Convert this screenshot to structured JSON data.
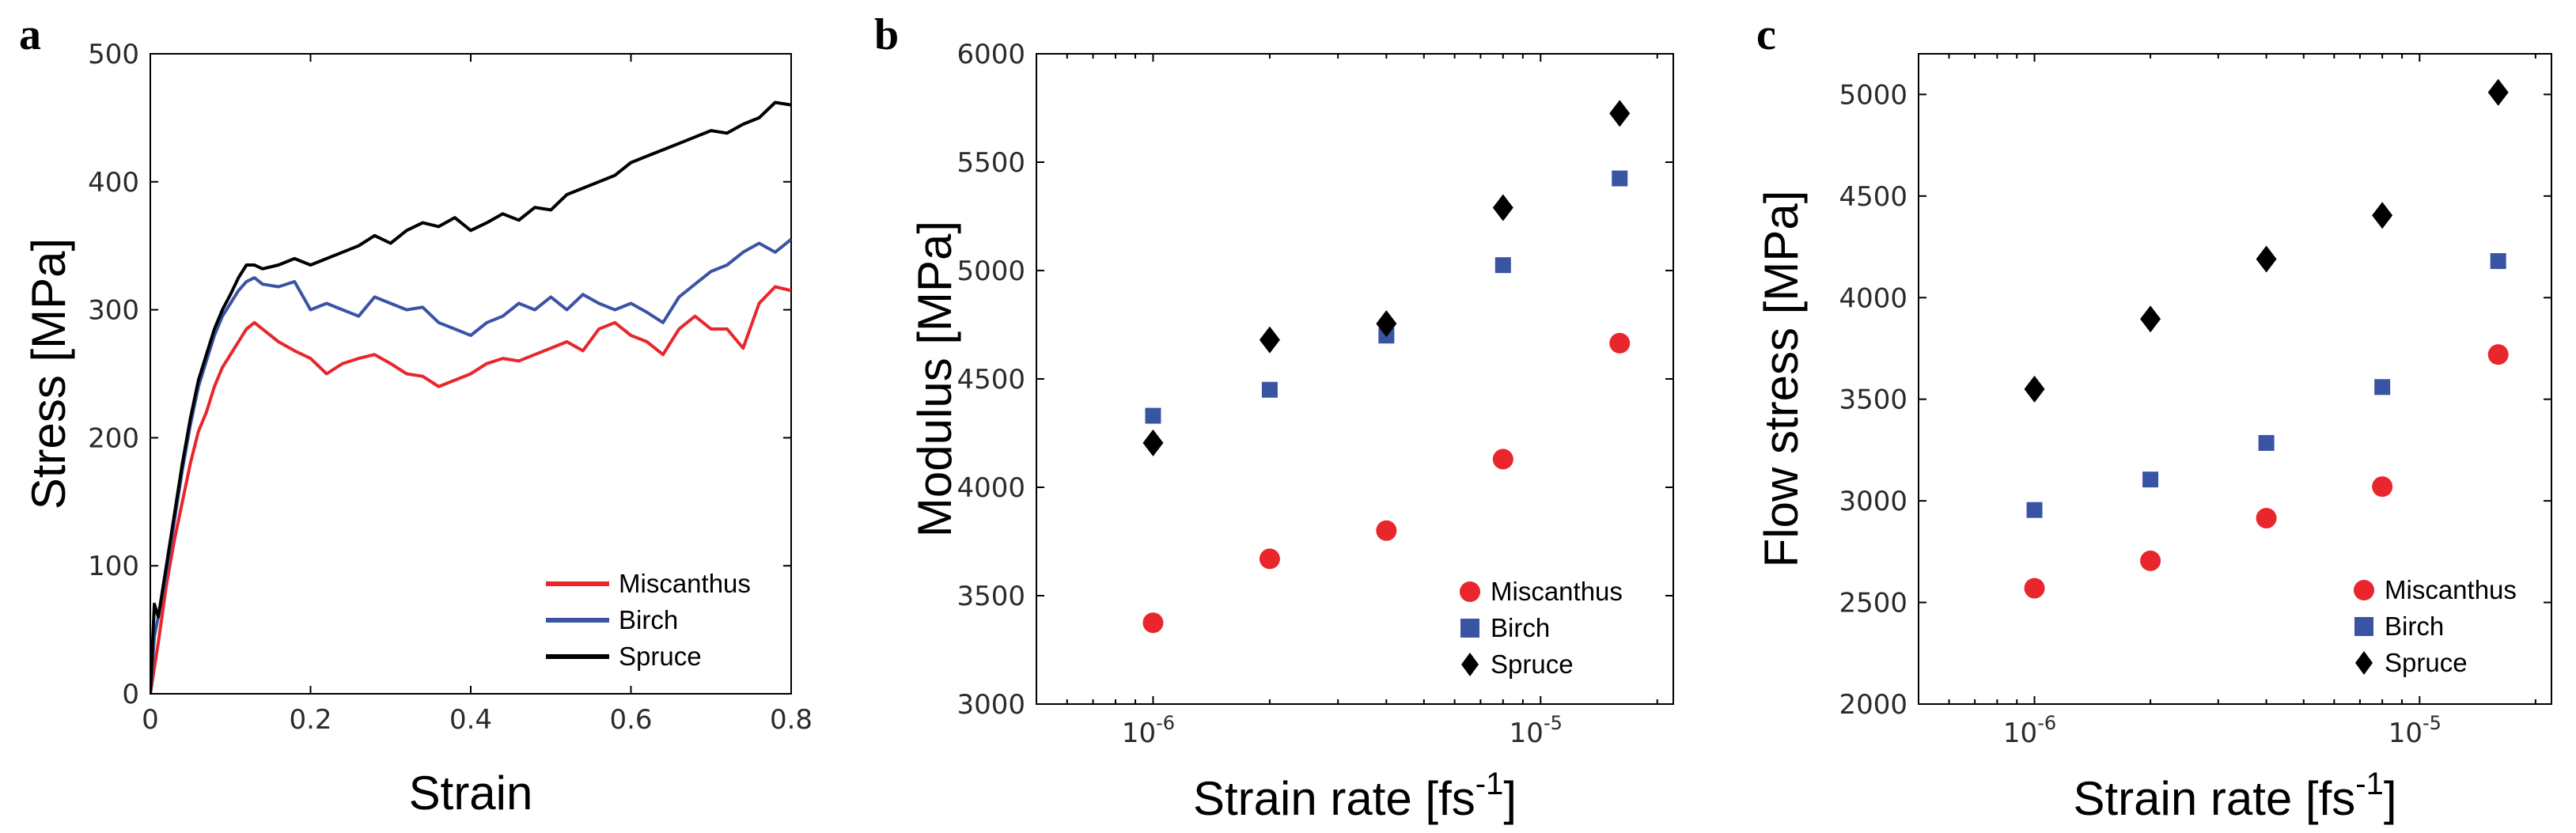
{
  "chart_data": [
    {
      "panel": "a",
      "type": "line",
      "xlabel": "Strain",
      "ylabel": "Stress [MPa]",
      "xlim": [
        0,
        0.8
      ],
      "ylim": [
        0,
        500
      ],
      "xticks": [
        "0",
        "0.2",
        "0.4",
        "0.6",
        "0.8"
      ],
      "xtick_values": [
        0,
        0.2,
        0.4,
        0.6,
        0.8
      ],
      "yticks": [
        "0",
        "100",
        "200",
        "300",
        "400",
        "500"
      ],
      "ytick_values": [
        0,
        100,
        200,
        300,
        400,
        500
      ],
      "legend_position": "bottom-right",
      "series": [
        {
          "name": "Miscanthus",
          "color": "#e8262b",
          "x": [
            0,
            0.01,
            0.02,
            0.03,
            0.04,
            0.05,
            0.06,
            0.07,
            0.08,
            0.09,
            0.1,
            0.11,
            0.12,
            0.13,
            0.14,
            0.16,
            0.18,
            0.2,
            0.22,
            0.24,
            0.26,
            0.28,
            0.3,
            0.32,
            0.34,
            0.36,
            0.38,
            0.4,
            0.42,
            0.44,
            0.46,
            0.48,
            0.5,
            0.52,
            0.54,
            0.56,
            0.58,
            0.6,
            0.62,
            0.64,
            0.66,
            0.68,
            0.7,
            0.72,
            0.74,
            0.76,
            0.78,
            0.8
          ],
          "y": [
            0,
            40,
            85,
            120,
            150,
            180,
            205,
            220,
            240,
            255,
            265,
            275,
            285,
            290,
            285,
            275,
            268,
            262,
            250,
            258,
            262,
            265,
            258,
            250,
            248,
            240,
            245,
            250,
            258,
            262,
            260,
            265,
            270,
            275,
            268,
            285,
            290,
            280,
            275,
            265,
            285,
            295,
            285,
            285,
            270,
            305,
            318,
            315
          ]
        },
        {
          "name": "Birch",
          "color": "#3a54a4",
          "x": [
            0,
            0.005,
            0.01,
            0.02,
            0.03,
            0.04,
            0.05,
            0.06,
            0.07,
            0.08,
            0.09,
            0.1,
            0.11,
            0.12,
            0.13,
            0.14,
            0.16,
            0.18,
            0.2,
            0.22,
            0.24,
            0.26,
            0.28,
            0.3,
            0.32,
            0.34,
            0.36,
            0.38,
            0.4,
            0.42,
            0.44,
            0.46,
            0.48,
            0.5,
            0.52,
            0.54,
            0.56,
            0.58,
            0.6,
            0.62,
            0.64,
            0.66,
            0.68,
            0.7,
            0.72,
            0.74,
            0.76,
            0.78,
            0.8
          ],
          "y": [
            0,
            45,
            60,
            95,
            135,
            175,
            210,
            240,
            260,
            280,
            295,
            305,
            315,
            322,
            325,
            320,
            318,
            322,
            300,
            305,
            300,
            295,
            310,
            305,
            300,
            302,
            290,
            285,
            280,
            290,
            295,
            305,
            300,
            310,
            300,
            312,
            305,
            300,
            305,
            298,
            290,
            310,
            320,
            330,
            335,
            345,
            352,
            345,
            355
          ]
        },
        {
          "name": "Spruce",
          "color": "#000000",
          "x": [
            0,
            0.005,
            0.01,
            0.02,
            0.03,
            0.04,
            0.05,
            0.06,
            0.07,
            0.08,
            0.09,
            0.1,
            0.11,
            0.12,
            0.13,
            0.14,
            0.16,
            0.18,
            0.2,
            0.22,
            0.24,
            0.26,
            0.28,
            0.3,
            0.32,
            0.34,
            0.36,
            0.38,
            0.4,
            0.42,
            0.44,
            0.46,
            0.48,
            0.5,
            0.52,
            0.54,
            0.56,
            0.58,
            0.6,
            0.62,
            0.64,
            0.66,
            0.68,
            0.7,
            0.72,
            0.74,
            0.76,
            0.78,
            0.8
          ],
          "y": [
            0,
            70,
            60,
            100,
            140,
            180,
            215,
            245,
            265,
            285,
            300,
            312,
            325,
            335,
            335,
            332,
            335,
            340,
            335,
            340,
            345,
            350,
            358,
            352,
            362,
            368,
            365,
            372,
            362,
            368,
            375,
            370,
            380,
            378,
            390,
            395,
            400,
            405,
            415,
            420,
            425,
            430,
            435,
            440,
            438,
            445,
            450,
            462,
            460
          ]
        }
      ]
    },
    {
      "panel": "b",
      "type": "scatter",
      "xscale": "log",
      "xlabel": "Strain rate [fs",
      "xlabel_sup": "-1",
      "xlabel_close": "]",
      "ylabel": "Modulus [MPa]",
      "xlim": [
        5e-07,
        2.2e-05
      ],
      "ylim": [
        3000,
        6000
      ],
      "xticks": [
        {
          "value": 1e-06,
          "base": "10",
          "exp": "-6"
        },
        {
          "value": 1e-05,
          "base": "10",
          "exp": "-5"
        }
      ],
      "yticks": [
        "3000",
        "3500",
        "4000",
        "4500",
        "5000",
        "5500",
        "6000"
      ],
      "ytick_values": [
        3000,
        3500,
        4000,
        4500,
        5000,
        5500,
        6000
      ],
      "legend_position": "bottom-right",
      "series": [
        {
          "name": "Miscanthus",
          "color": "#e8262b",
          "marker": "circle",
          "x": [
            1e-06,
            2e-06,
            4e-06,
            8e-06,
            1.6e-05
          ],
          "y": [
            3375,
            3670,
            3800,
            4130,
            4665
          ]
        },
        {
          "name": "Birch",
          "color": "#3a54a4",
          "marker": "square",
          "x": [
            1e-06,
            2e-06,
            4e-06,
            8e-06,
            1.6e-05
          ],
          "y": [
            4330,
            4450,
            4700,
            5025,
            5425
          ]
        },
        {
          "name": "Spruce",
          "color": "#000000",
          "marker": "diamond",
          "x": [
            1e-06,
            2e-06,
            4e-06,
            8e-06,
            1.6e-05
          ],
          "y": [
            4205,
            4680,
            4755,
            5290,
            5725
          ]
        }
      ]
    },
    {
      "panel": "c",
      "type": "scatter",
      "xscale": "log",
      "xlabel": "Strain rate [fs",
      "xlabel_sup": "-1",
      "xlabel_close": "]",
      "ylabel": "Flow stress [MPa]",
      "xlim": [
        5e-07,
        2.2e-05
      ],
      "ylim": [
        2000,
        5200
      ],
      "xticks": [
        {
          "value": 1e-06,
          "base": "10",
          "exp": "-6"
        },
        {
          "value": 1e-05,
          "base": "10",
          "exp": "-5"
        }
      ],
      "yticks": [
        "2000",
        "2500",
        "3000",
        "3500",
        "4000",
        "4500",
        "5000"
      ],
      "ytick_values": [
        2000,
        2500,
        3000,
        3500,
        4000,
        4500,
        5000
      ],
      "legend_position": "bottom-right",
      "series": [
        {
          "name": "Miscanthus",
          "color": "#e8262b",
          "marker": "circle",
          "x": [
            1e-06,
            2e-06,
            4e-06,
            8e-06,
            1.6e-05
          ],
          "y": [
            2570,
            2705,
            2915,
            3070,
            3720
          ]
        },
        {
          "name": "Birch",
          "color": "#3a54a4",
          "marker": "square",
          "x": [
            1e-06,
            2e-06,
            4e-06,
            8e-06,
            1.6e-05
          ],
          "y": [
            2955,
            3105,
            3285,
            3560,
            4180
          ]
        },
        {
          "name": "Spruce",
          "color": "#000000",
          "marker": "diamond",
          "x": [
            1e-06,
            2e-06,
            4e-06,
            8e-06,
            1.6e-05
          ],
          "y": [
            3550,
            3895,
            4190,
            4405,
            5010
          ]
        }
      ]
    }
  ]
}
